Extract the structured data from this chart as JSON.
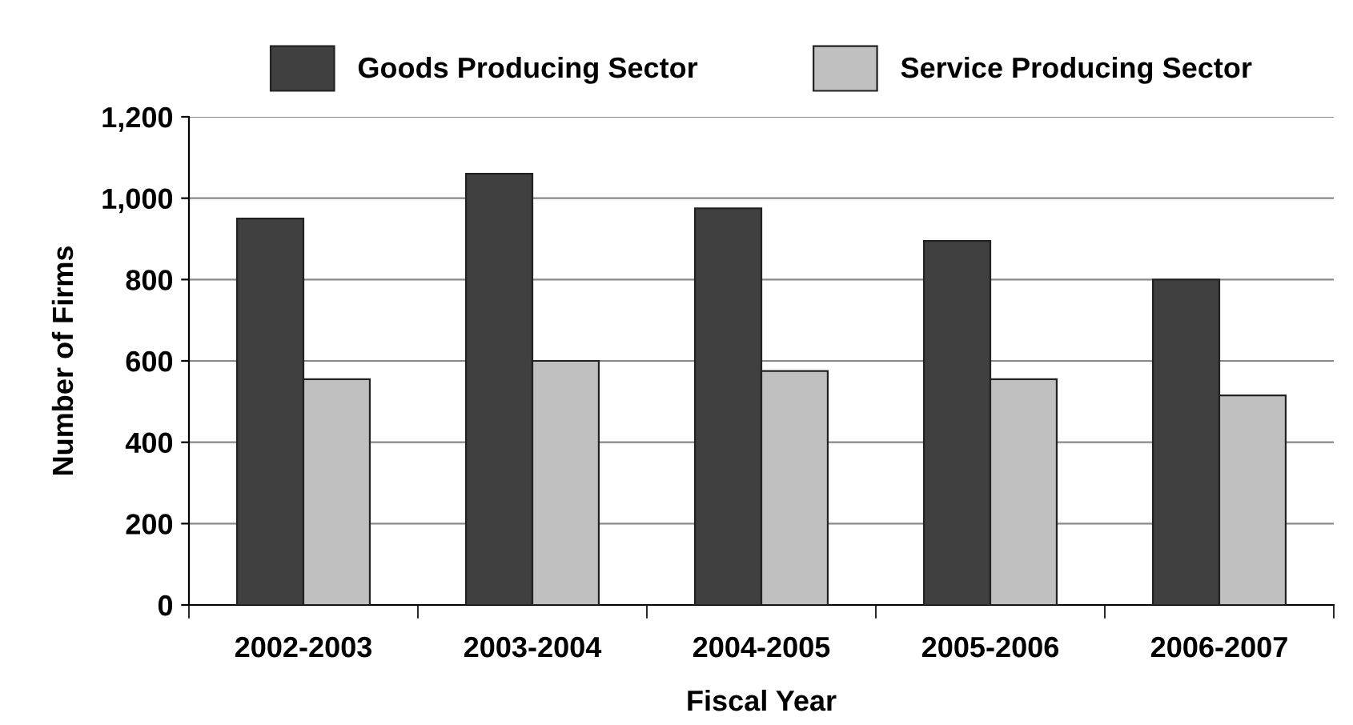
{
  "chart_data": {
    "type": "bar",
    "xlabel": "Fiscal Year",
    "ylabel": "Number of Firms",
    "categories": [
      "2002-2003",
      "2003-2004",
      "2004-2005",
      "2005-2006",
      "2006-2007"
    ],
    "series": [
      {
        "name": "Goods Producing Sector",
        "color": "#404040",
        "values": [
          950,
          1060,
          975,
          895,
          800
        ]
      },
      {
        "name": "Service Producing Sector",
        "color": "#c0c0c0",
        "values": [
          555,
          600,
          575,
          555,
          515
        ]
      }
    ],
    "ylim": [
      0,
      1200
    ],
    "yticks": [
      0,
      {
        "value": 200,
        "label": "200"
      },
      400,
      600,
      800,
      {
        "value": 1000,
        "label": "1,000"
      },
      {
        "value": 1200,
        "label": "1,200"
      }
    ],
    "grid": "y",
    "legend": "top"
  }
}
